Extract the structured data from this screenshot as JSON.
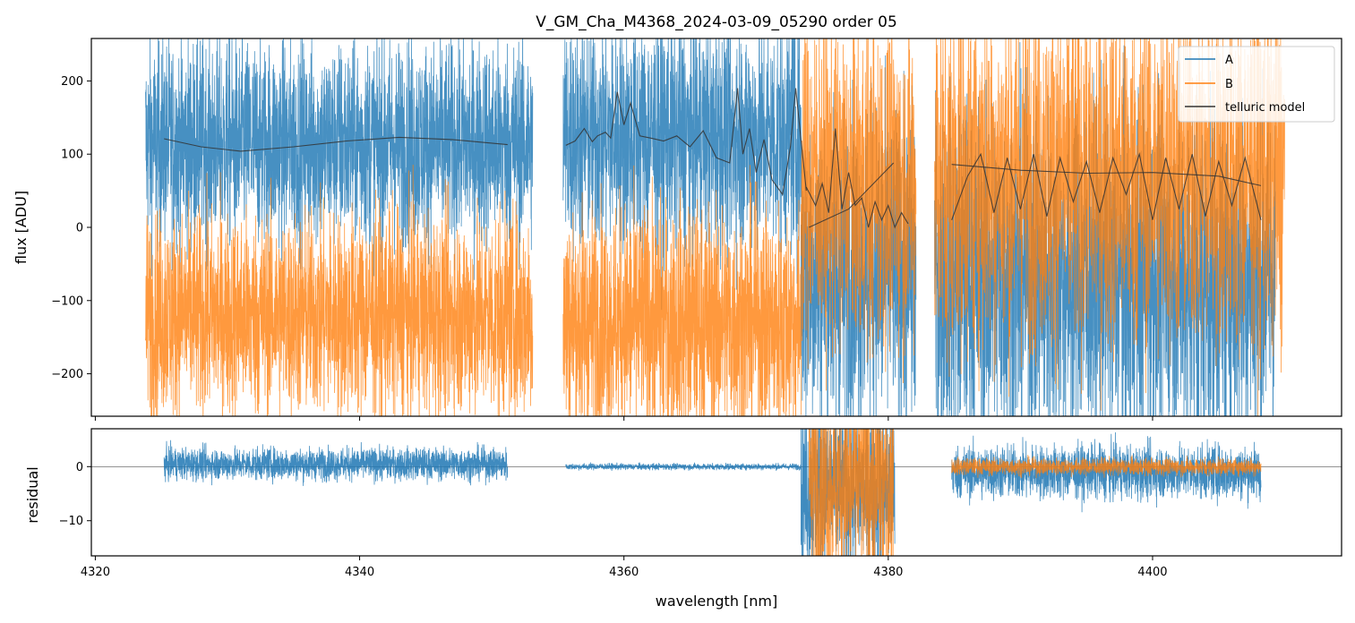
{
  "chart_data": [
    {
      "type": "line",
      "title": "V_GM_Cha_M4368_2024-03-09_05290  order 05",
      "xlabel": "",
      "ylabel": "flux [ADU]",
      "xlim": [
        4319.7,
        4414.3
      ],
      "ylim": [
        -258,
        258
      ],
      "yticks": [
        -200,
        -100,
        0,
        100,
        200
      ],
      "ytick_labels": [
        "−200",
        "−100",
        "0",
        "100",
        "200"
      ],
      "xticks": [
        4320,
        4340,
        4360,
        4380,
        4400
      ],
      "legend_location": "top-right",
      "legend": [
        {
          "name": "A",
          "color": "#1f77b4"
        },
        {
          "name": "B",
          "color": "#ff7f0e"
        },
        {
          "name": "telluric model",
          "color": "#333333"
        }
      ],
      "series": [
        {
          "name": "A",
          "color": "#1f77b4",
          "style": "noisy spectrum",
          "segments": [
            {
              "x": [
                4323.8,
                4353.1
              ],
              "center": 115,
              "noise": 70
            },
            {
              "x": [
                4355.4,
                4373.4
              ],
              "center": 125,
              "noise": 80
            },
            {
              "x": [
                4373.4,
                4382.1
              ],
              "center": -60,
              "noise": 110
            },
            {
              "x": [
                4383.5,
                4409.3
              ],
              "center": -70,
              "noise": 120
            }
          ]
        },
        {
          "name": "B",
          "color": "#ff7f0e",
          "style": "noisy spectrum",
          "segments": [
            {
              "x": [
                4323.8,
                4353.1
              ],
              "center": -120,
              "noise": 70
            },
            {
              "x": [
                4355.4,
                4373.4
              ],
              "center": -130,
              "noise": 80
            },
            {
              "x": [
                4373.4,
                4382.1
              ],
              "center": 60,
              "noise": 110
            },
            {
              "x": [
                4383.5,
                4410.0
              ],
              "center": 70,
              "noise": 120
            }
          ]
        },
        {
          "name": "telluric model",
          "color": "#333333",
          "x": [
            4325.2,
            4328,
            4331,
            4335,
            4339,
            4343,
            4347,
            4351.2
          ],
          "values": [
            121,
            110,
            104,
            110,
            118,
            123,
            120,
            113
          ],
          "segments_note": "piecewise model per chunk",
          "chunks": [
            {
              "x": [
                4325.2,
                4328,
                4331,
                4335,
                4339,
                4343,
                4347,
                4351.2
              ],
              "y": [
                121,
                110,
                104,
                110,
                118,
                123,
                120,
                113
              ]
            },
            {
              "x": [
                4355.6,
                4356.3,
                4357.0,
                4357.6,
                4358.0,
                4358.6,
                4359.0,
                4359.5,
                4360.0,
                4360.5,
                4361.2,
                4362,
                4363,
                4364,
                4365,
                4366,
                4367,
                4368,
                4368.6,
                4369,
                4369.5,
                4370,
                4370.6,
                4371.2,
                4372,
                4372.6,
                4373.0,
                4373.4,
                4373.8
              ],
              "y": [
                112,
                118,
                135,
                117,
                125,
                130,
                122,
                185,
                140,
                170,
                125,
                122,
                118,
                125,
                110,
                132,
                95,
                88,
                190,
                100,
                135,
                75,
                120,
                65,
                45,
                110,
                190,
                120,
                50
              ]
            },
            {
              "x": [
                4373.8,
                4374.5,
                4375,
                4375.5,
                4376,
                4376.5,
                4377,
                4377.5,
                4378,
                4378.5,
                4379,
                4379.5,
                4380,
                4380.5,
                4381,
                4381.5
              ],
              "y": [
                55,
                30,
                60,
                20,
                135,
                25,
                75,
                30,
                40,
                0,
                35,
                10,
                30,
                0,
                20,
                5
              ]
            },
            {
              "x": [
                4374.0,
                4377,
                4380.4
              ],
              "y": [
                0,
                25,
                88
              ]
            },
            {
              "x": [
                4384.8,
                4386,
                4387,
                4388,
                4389,
                4390,
                4391,
                4392,
                4393,
                4394,
                4395,
                4396,
                4397,
                4398,
                4399,
                4400,
                4401,
                4402,
                4403,
                4404,
                4405,
                4406,
                4407,
                4408.2
              ],
              "y": [
                10,
                70,
                100,
                20,
                95,
                25,
                100,
                15,
                95,
                35,
                90,
                20,
                95,
                45,
                100,
                10,
                95,
                25,
                100,
                15,
                90,
                30,
                95,
                10
              ]
            },
            {
              "x": [
                4384.8,
                4390,
                4395,
                4400,
                4405,
                4408.2
              ],
              "y": [
                86,
                78,
                74,
                75,
                70,
                57
              ]
            }
          ]
        }
      ]
    },
    {
      "type": "line",
      "title": "",
      "xlabel": "wavelength [nm]",
      "ylabel": "residual",
      "xlim": [
        4319.7,
        4414.3
      ],
      "ylim": [
        -16.5,
        7
      ],
      "yticks": [
        -10,
        0
      ],
      "ytick_labels": [
        "−10",
        "0"
      ],
      "xticks": [
        4320,
        4340,
        4360,
        4380,
        4400
      ],
      "xtick_labels": [
        "4320",
        "4340",
        "4360",
        "4380",
        "4400"
      ],
      "reference_line": 0,
      "series": [
        {
          "name": "A",
          "color": "#1f77b4",
          "segments": [
            {
              "x": [
                4325.2,
                4351.2
              ],
              "center": 0.5,
              "noise": 1.5
            },
            {
              "x": [
                4355.6,
                4373.4
              ],
              "center": 0.0,
              "noise": 0.3
            },
            {
              "x": [
                4373.4,
                4380.5
              ],
              "center": -4,
              "noise": 8
            },
            {
              "x": [
                4384.8,
                4408.2
              ],
              "center": -1,
              "noise": 2.5
            }
          ]
        },
        {
          "name": "B",
          "color": "#ff7f0e",
          "segments": [
            {
              "x": [
                4374.0,
                4380.4
              ],
              "center": -3,
              "noise": 10
            },
            {
              "x": [
                4384.8,
                4408.2
              ],
              "center": 0.0,
              "noise": 0.8
            }
          ]
        }
      ]
    }
  ]
}
